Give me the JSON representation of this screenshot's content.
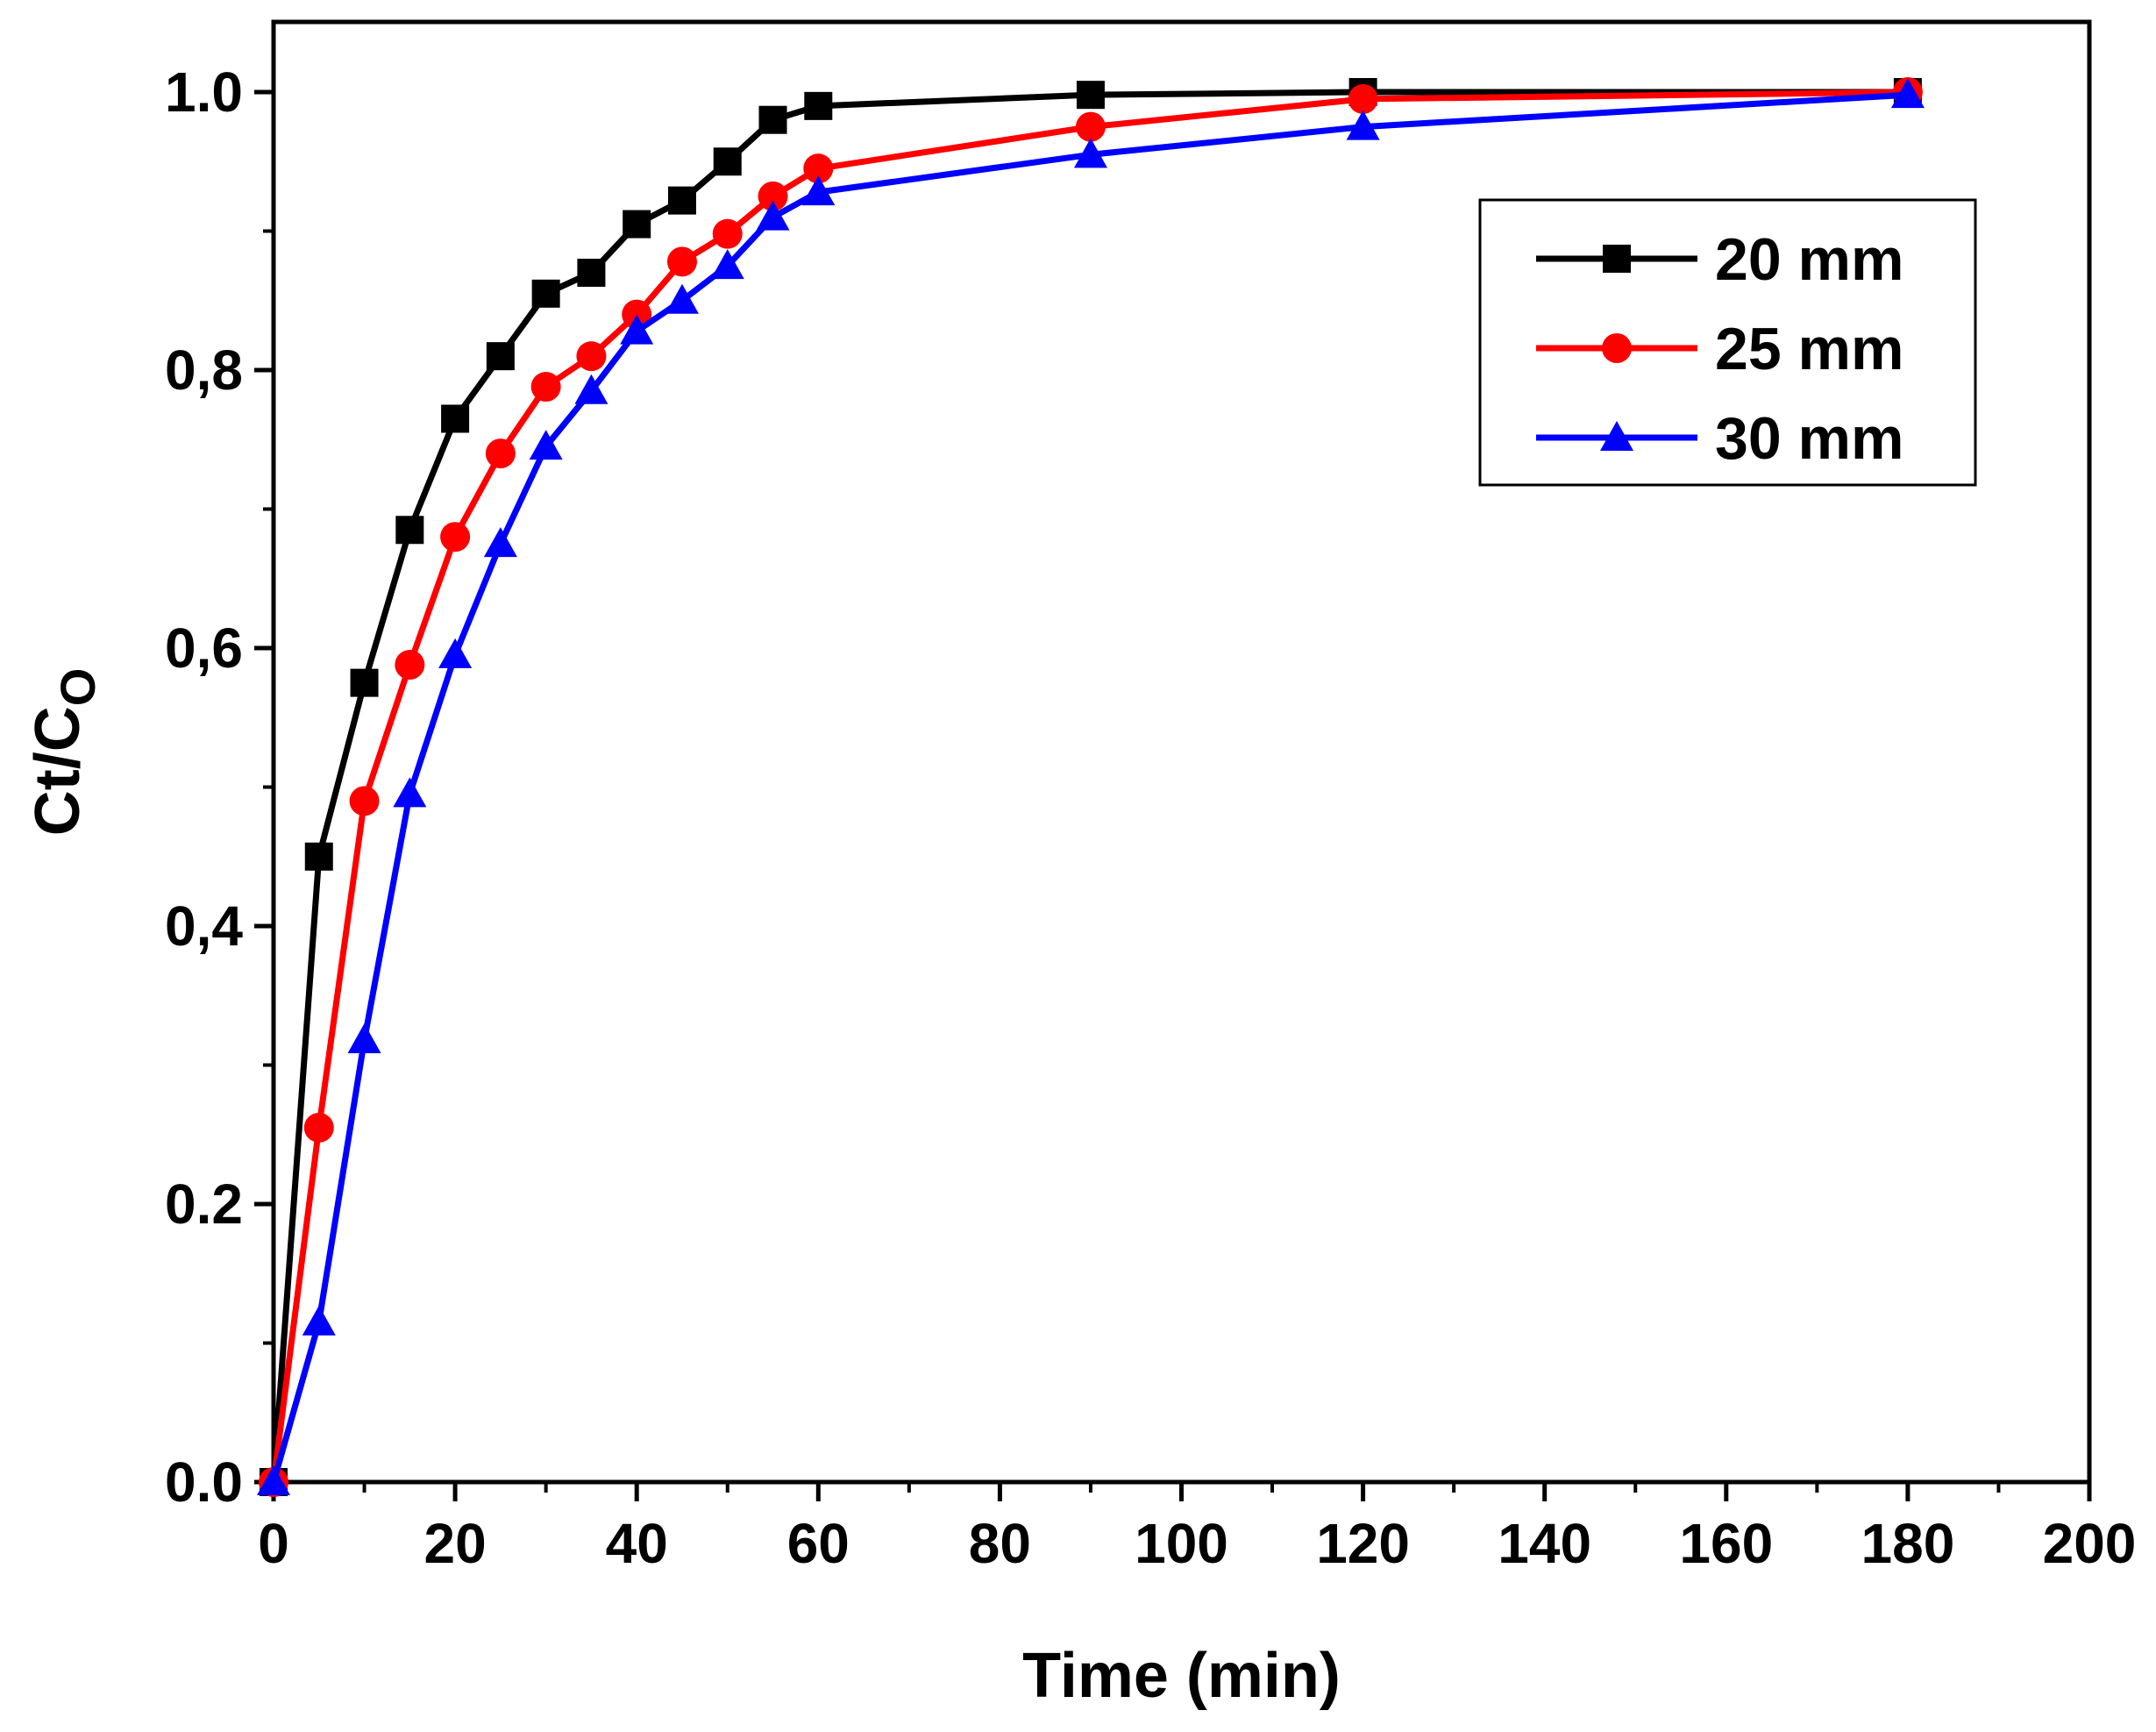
{
  "chart_data": {
    "type": "line",
    "title": "",
    "xlabel": "Time (min)",
    "ylabel_main": "Ct/C",
    "ylabel_sub": "O",
    "xlim": [
      0,
      200
    ],
    "ylim": [
      0.0,
      1.05
    ],
    "x_ticks": [
      0,
      20,
      40,
      60,
      80,
      100,
      120,
      140,
      160,
      180,
      200
    ],
    "x_tick_labels": [
      "0",
      "20",
      "40",
      "60",
      "80",
      "100",
      "120",
      "140",
      "160",
      "180",
      "200"
    ],
    "y_ticks": [
      0.0,
      0.2,
      0.4,
      0.6,
      0.8,
      1.0
    ],
    "y_tick_labels": [
      "0.0",
      "0.2",
      "0,4",
      "0,6",
      "0,8",
      "1.0"
    ],
    "grid": false,
    "legend_position": "top-right",
    "series": [
      {
        "name": "20 mm",
        "color": "#000000",
        "marker": "square",
        "x": [
          0,
          5,
          10,
          15,
          20,
          25,
          30,
          35,
          40,
          45,
          50,
          55,
          60,
          90,
          120,
          180
        ],
        "y": [
          0.0,
          0.45,
          0.575,
          0.685,
          0.765,
          0.81,
          0.855,
          0.87,
          0.905,
          0.922,
          0.95,
          0.98,
          0.99,
          0.998,
          1.0,
          1.0
        ]
      },
      {
        "name": "25 mm",
        "color": "#ff0000",
        "marker": "circle",
        "x": [
          0,
          5,
          10,
          15,
          20,
          25,
          30,
          35,
          40,
          45,
          50,
          55,
          60,
          90,
          120,
          180
        ],
        "y": [
          0.0,
          0.255,
          0.49,
          0.588,
          0.68,
          0.74,
          0.788,
          0.81,
          0.84,
          0.878,
          0.898,
          0.925,
          0.945,
          0.975,
          0.995,
          1.0
        ]
      },
      {
        "name": "30 mm",
        "color": "#0000ff",
        "marker": "triangle",
        "x": [
          0,
          5,
          10,
          15,
          20,
          25,
          30,
          35,
          40,
          45,
          50,
          55,
          60,
          90,
          120,
          180
        ],
        "y": [
          0.0,
          0.115,
          0.318,
          0.495,
          0.595,
          0.675,
          0.745,
          0.785,
          0.828,
          0.85,
          0.875,
          0.91,
          0.928,
          0.955,
          0.975,
          0.998
        ]
      }
    ]
  }
}
